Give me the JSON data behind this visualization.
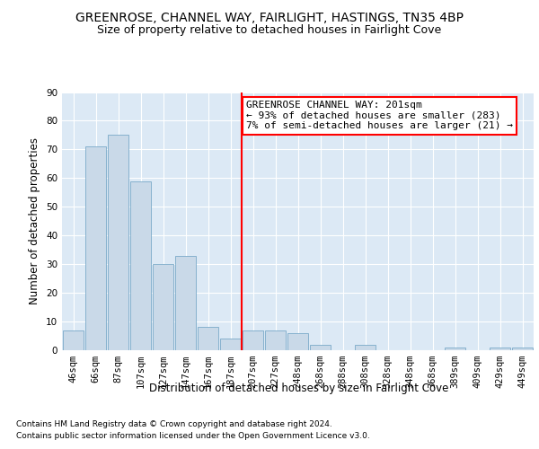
{
  "title_line1": "GREENROSE, CHANNEL WAY, FAIRLIGHT, HASTINGS, TN35 4BP",
  "title_line2": "Size of property relative to detached houses in Fairlight Cove",
  "xlabel": "Distribution of detached houses by size in Fairlight Cove",
  "ylabel": "Number of detached properties",
  "footnote1": "Contains HM Land Registry data © Crown copyright and database right 2024.",
  "footnote2": "Contains public sector information licensed under the Open Government Licence v3.0.",
  "bar_labels": [
    "46sqm",
    "66sqm",
    "87sqm",
    "107sqm",
    "127sqm",
    "147sqm",
    "167sqm",
    "187sqm",
    "207sqm",
    "227sqm",
    "248sqm",
    "268sqm",
    "288sqm",
    "308sqm",
    "328sqm",
    "348sqm",
    "368sqm",
    "389sqm",
    "409sqm",
    "429sqm",
    "449sqm"
  ],
  "bar_values": [
    7,
    71,
    75,
    59,
    30,
    33,
    8,
    4,
    7,
    7,
    6,
    2,
    0,
    2,
    0,
    0,
    0,
    1,
    0,
    1,
    1
  ],
  "bar_color": "#c9d9e8",
  "bar_edge_color": "#7aaac8",
  "marker_line_color": "red",
  "annotation_text": "GREENROSE CHANNEL WAY: 201sqm\n← 93% of detached houses are smaller (283)\n7% of semi-detached houses are larger (21) →",
  "annotation_box_color": "white",
  "annotation_box_edge_color": "red",
  "ylim": [
    0,
    90
  ],
  "yticks": [
    0,
    10,
    20,
    30,
    40,
    50,
    60,
    70,
    80,
    90
  ],
  "plot_bg_color": "#dce9f5",
  "title_fontsize": 10,
  "subtitle_fontsize": 9,
  "axis_label_fontsize": 8.5,
  "tick_fontsize": 7.5,
  "annotation_fontsize": 8,
  "footnote_fontsize": 6.5
}
